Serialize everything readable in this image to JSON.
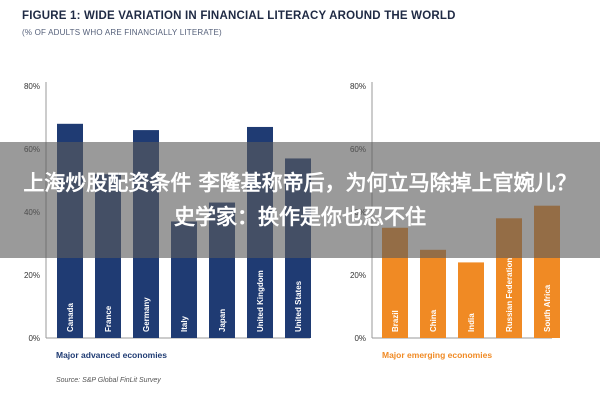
{
  "figure": {
    "title": "FIGURE 1: WIDE VARIATION IN FINANCIAL LITERACY AROUND THE WORLD",
    "subtitle": "(% OF ADULTS WHO ARE FINANCIALLY LITERATE)",
    "source": "Source: S&P Global FinLit Survey"
  },
  "overlay": {
    "headline": "上海炒股配资条件 李隆基称帝后，为何立马除掉上官婉儿？史学家：换作是你也忍不住"
  },
  "colors": {
    "advanced": "#1f3b73",
    "emerging": "#f08a24",
    "axis": "#999999"
  },
  "chart_data": [
    {
      "type": "bar",
      "group_label": "Major advanced economies",
      "categories": [
        "Canada",
        "France",
        "Germany",
        "Italy",
        "Japan",
        "United Kingdom",
        "United States"
      ],
      "values": [
        68,
        52,
        66,
        37,
        43,
        67,
        57
      ],
      "ylim": [
        0,
        80
      ],
      "yticks": [
        "0%",
        "20%",
        "40%",
        "60%",
        "80%"
      ],
      "xlabel": "",
      "ylabel": "",
      "grid": false
    },
    {
      "type": "bar",
      "group_label": "Major emerging economies",
      "categories": [
        "Brazil",
        "China",
        "India",
        "Russian Federation",
        "South Africa"
      ],
      "values": [
        35,
        28,
        24,
        38,
        42
      ],
      "ylim": [
        0,
        80
      ],
      "yticks": [
        "0%",
        "20%",
        "40%",
        "60%",
        "80%"
      ],
      "xlabel": "",
      "ylabel": "",
      "grid": false
    }
  ]
}
